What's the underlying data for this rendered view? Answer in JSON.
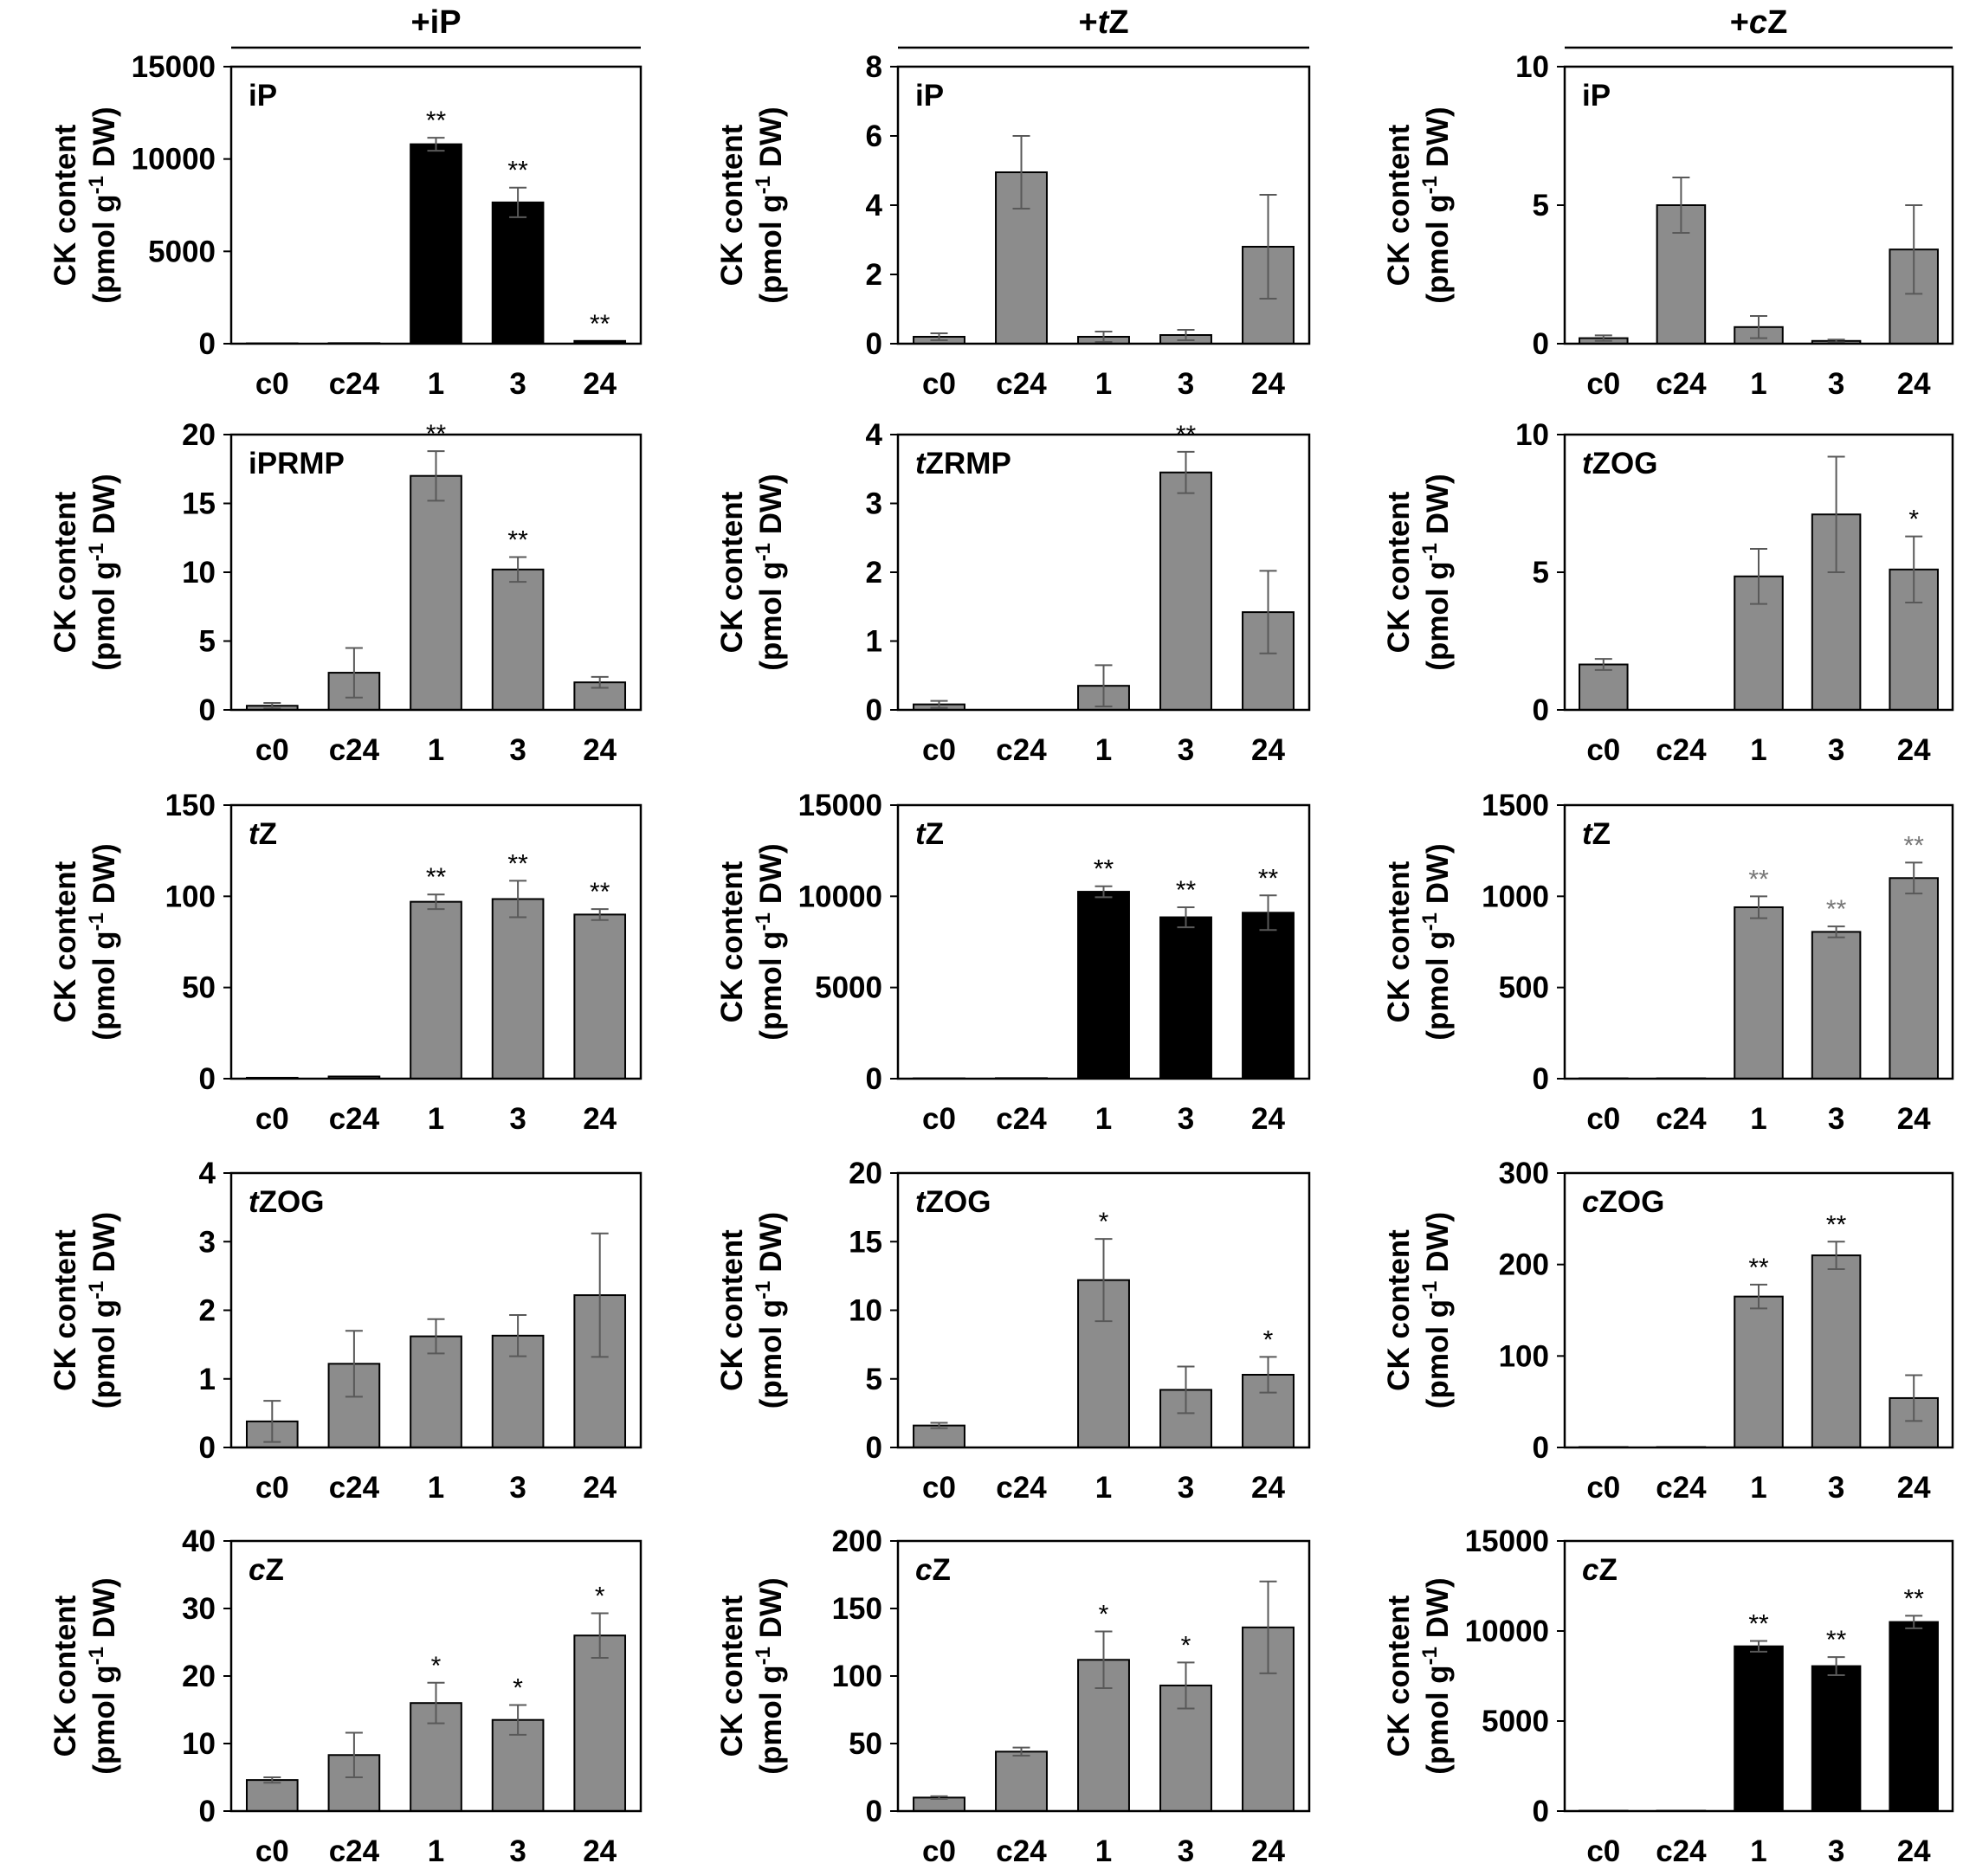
{
  "figure": {
    "column_headers": [
      {
        "prefix": "+",
        "italic": "",
        "rest": "iP"
      },
      {
        "prefix": "+",
        "italic": "t",
        "rest": "Z"
      },
      {
        "prefix": "+",
        "italic": "c",
        "rest": "Z"
      }
    ],
    "y_label_line1": "CK content",
    "y_label_line2_prefix": "(pmol g",
    "y_label_line2_sup": "-1",
    "y_label_line2_suffix": " DW)"
  },
  "colors": {
    "gray_bar": "#8c8c8c",
    "black_bar": "#000000",
    "error_bar": "#595959"
  },
  "chart_data": [
    {
      "type": "bar",
      "title": "iP",
      "title_italic": "",
      "title_rest": "iP",
      "categories": [
        "c0",
        "c24",
        "1",
        "3",
        "24"
      ],
      "values": [
        20,
        30,
        10800,
        7650,
        150
      ],
      "errors": [
        0,
        0,
        350,
        800,
        0
      ],
      "significance": [
        "",
        "",
        "**",
        "**",
        "**"
      ],
      "ylim": [
        0,
        15000
      ],
      "yticks": [
        "0",
        "5000",
        "10000",
        "15000"
      ],
      "fill": "black",
      "ylabel": "CK content (pmol g-1 DW)"
    },
    {
      "type": "bar",
      "title": "iP",
      "title_italic": "",
      "title_rest": "iP",
      "categories": [
        "c0",
        "c24",
        "1",
        "3",
        "24"
      ],
      "values": [
        0.2,
        4.95,
        0.2,
        0.25,
        2.8
      ],
      "errors": [
        0.1,
        1.05,
        0.15,
        0.15,
        1.5
      ],
      "significance": [
        "",
        "",
        "",
        "",
        ""
      ],
      "ylim": [
        0,
        8
      ],
      "yticks": [
        "0",
        "2",
        "4",
        "6",
        "8"
      ],
      "fill": "gray",
      "ylabel": "CK content (pmol g-1 DW)"
    },
    {
      "type": "bar",
      "title": "iP",
      "title_italic": "",
      "title_rest": "iP",
      "categories": [
        "c0",
        "c24",
        "1",
        "3",
        "24"
      ],
      "values": [
        0.2,
        5.0,
        0.6,
        0.1,
        3.4
      ],
      "errors": [
        0.1,
        1.0,
        0.4,
        0.05,
        1.6
      ],
      "significance": [
        "",
        "",
        "",
        "",
        ""
      ],
      "ylim": [
        0,
        10
      ],
      "yticks": [
        "0",
        "5",
        "10"
      ],
      "fill": "gray",
      "ylabel": "CK content (pmol g-1 DW)"
    },
    {
      "type": "bar",
      "title": "iPRMP",
      "title_italic": "",
      "title_rest": "iPRMP",
      "categories": [
        "c0",
        "c24",
        "1",
        "3",
        "24"
      ],
      "values": [
        0.3,
        2.7,
        17.0,
        10.2,
        2.0
      ],
      "errors": [
        0.2,
        1.8,
        1.8,
        0.9,
        0.4
      ],
      "significance": [
        "",
        "",
        "**",
        "**",
        ""
      ],
      "ylim": [
        0,
        20
      ],
      "yticks": [
        "0",
        "5",
        "10",
        "15",
        "20"
      ],
      "fill": "gray",
      "ylabel": "CK content (pmol g-1 DW)"
    },
    {
      "type": "bar",
      "title": "tZRMP",
      "title_italic": "t",
      "title_rest": "ZRMP",
      "categories": [
        "c0",
        "c24",
        "1",
        "3",
        "24"
      ],
      "values": [
        0.08,
        0,
        0.35,
        3.45,
        1.42
      ],
      "errors": [
        0.05,
        0,
        0.3,
        0.3,
        0.6
      ],
      "significance": [
        "",
        "",
        "",
        "**",
        ""
      ],
      "ylim": [
        0,
        4
      ],
      "yticks": [
        "0",
        "1",
        "2",
        "3",
        "4"
      ],
      "fill": "gray",
      "ylabel": "CK content (pmol g-1 DW)"
    },
    {
      "type": "bar",
      "title": "tZOG",
      "title_italic": "t",
      "title_rest": "ZOG",
      "categories": [
        "c0",
        "c24",
        "1",
        "3",
        "24"
      ],
      "values": [
        1.65,
        0,
        4.85,
        7.1,
        5.1
      ],
      "errors": [
        0.2,
        0,
        1.0,
        2.1,
        1.2
      ],
      "significance": [
        "",
        "",
        "",
        "",
        "*"
      ],
      "ylim": [
        0,
        10
      ],
      "yticks": [
        "0",
        "5",
        "10"
      ],
      "fill": "gray",
      "ylabel": "CK content (pmol g-1 DW)"
    },
    {
      "type": "bar",
      "title": "tZ",
      "title_italic": "t",
      "title_rest": "Z",
      "categories": [
        "c0",
        "c24",
        "1",
        "3",
        "24"
      ],
      "values": [
        0.5,
        1.2,
        97,
        98.5,
        90
      ],
      "errors": [
        0,
        0,
        4,
        10,
        3
      ],
      "significance": [
        "",
        "",
        "**",
        "**",
        "**"
      ],
      "ylim": [
        0,
        150
      ],
      "yticks": [
        "0",
        "50",
        "100",
        "150"
      ],
      "fill": "gray",
      "ylabel": "CK content (pmol g-1 DW)"
    },
    {
      "type": "bar",
      "title": "tZ",
      "title_italic": "t",
      "title_rest": "Z",
      "categories": [
        "c0",
        "c24",
        "1",
        "3",
        "24"
      ],
      "values": [
        20,
        30,
        10250,
        8850,
        9100
      ],
      "errors": [
        0,
        0,
        300,
        550,
        950
      ],
      "significance": [
        "",
        "",
        "**",
        "**",
        "**"
      ],
      "ylim": [
        0,
        15000
      ],
      "yticks": [
        "0",
        "5000",
        "10000",
        "15000"
      ],
      "fill": "black",
      "ylabel": "CK content (pmol g-1 DW)"
    },
    {
      "type": "bar",
      "title": "tZ",
      "title_italic": "t",
      "title_rest": "Z",
      "categories": [
        "c0",
        "c24",
        "1",
        "3",
        "24"
      ],
      "values": [
        2,
        2,
        940,
        805,
        1100
      ],
      "errors": [
        0,
        0,
        60,
        30,
        85
      ],
      "significance": [
        "",
        "",
        "**",
        "**",
        "**"
      ],
      "significance_color": "#777777",
      "ylim": [
        0,
        1500
      ],
      "yticks": [
        "0",
        "500",
        "1000",
        "1500"
      ],
      "fill": "gray",
      "ylabel": "CK content (pmol g-1 DW)"
    },
    {
      "type": "bar",
      "title": "tZOG",
      "title_italic": "t",
      "title_rest": "ZOG",
      "categories": [
        "c0",
        "c24",
        "1",
        "3",
        "24"
      ],
      "values": [
        0.38,
        1.22,
        1.62,
        1.63,
        2.22
      ],
      "errors": [
        0.3,
        0.48,
        0.25,
        0.3,
        0.9
      ],
      "significance": [
        "",
        "",
        "",
        "",
        ""
      ],
      "ylim": [
        0,
        4
      ],
      "yticks": [
        "0",
        "1",
        "2",
        "3",
        "4"
      ],
      "fill": "gray",
      "ylabel": "CK content (pmol g-1 DW)"
    },
    {
      "type": "bar",
      "title": "tZOG",
      "title_italic": "t",
      "title_rest": "ZOG",
      "categories": [
        "c0",
        "c24",
        "1",
        "3",
        "24"
      ],
      "values": [
        1.6,
        0,
        12.2,
        4.2,
        5.3
      ],
      "errors": [
        0.2,
        0,
        3.0,
        1.7,
        1.3
      ],
      "significance": [
        "",
        "",
        "*",
        "",
        "*"
      ],
      "ylim": [
        0,
        20
      ],
      "yticks": [
        "0",
        "5",
        "10",
        "15",
        "20"
      ],
      "fill": "gray",
      "ylabel": "CK content (pmol g-1 DW)"
    },
    {
      "type": "bar",
      "title": "cZOG",
      "title_italic": "c",
      "title_rest": "ZOG",
      "categories": [
        "c0",
        "c24",
        "1",
        "3",
        "24"
      ],
      "values": [
        0.5,
        0.5,
        165,
        210,
        54
      ],
      "errors": [
        0,
        0,
        13,
        15,
        25
      ],
      "significance": [
        "",
        "",
        "**",
        "**",
        ""
      ],
      "ylim": [
        0,
        300
      ],
      "yticks": [
        "0",
        "100",
        "200",
        "300"
      ],
      "fill": "gray",
      "ylabel": "CK content (pmol g-1 DW)"
    },
    {
      "type": "bar",
      "title": "cZ",
      "title_italic": "c",
      "title_rest": "Z",
      "categories": [
        "c0",
        "c24",
        "1",
        "3",
        "24"
      ],
      "values": [
        4.6,
        8.3,
        16.0,
        13.5,
        26.0
      ],
      "errors": [
        0.4,
        3.3,
        3.0,
        2.2,
        3.3
      ],
      "significance": [
        "",
        "",
        "*",
        "*",
        "*"
      ],
      "ylim": [
        0,
        40
      ],
      "yticks": [
        "0",
        "10",
        "20",
        "30",
        "40"
      ],
      "fill": "gray",
      "ylabel": "CK content (pmol g-1 DW)"
    },
    {
      "type": "bar",
      "title": "cZ",
      "title_italic": "c",
      "title_rest": "Z",
      "categories": [
        "c0",
        "c24",
        "1",
        "3",
        "24"
      ],
      "values": [
        10,
        44,
        112,
        93,
        136
      ],
      "errors": [
        1,
        3,
        21,
        17,
        34
      ],
      "significance": [
        "",
        "",
        "*",
        "*",
        ""
      ],
      "ylim": [
        0,
        200
      ],
      "yticks": [
        "0",
        "50",
        "100",
        "150",
        "200"
      ],
      "fill": "gray",
      "ylabel": "CK content (pmol g-1 DW)"
    },
    {
      "type": "bar",
      "title": "cZ",
      "title_italic": "c",
      "title_rest": "Z",
      "categories": [
        "c0",
        "c24",
        "1",
        "3",
        "24"
      ],
      "values": [
        20,
        20,
        9150,
        8050,
        10500
      ],
      "errors": [
        0,
        0,
        300,
        500,
        350
      ],
      "significance": [
        "",
        "",
        "**",
        "**",
        "**"
      ],
      "ylim": [
        0,
        15000
      ],
      "yticks": [
        "0",
        "5000",
        "10000",
        "15000"
      ],
      "fill": "black",
      "ylabel": "CK content (pmol g-1 DW)"
    }
  ]
}
